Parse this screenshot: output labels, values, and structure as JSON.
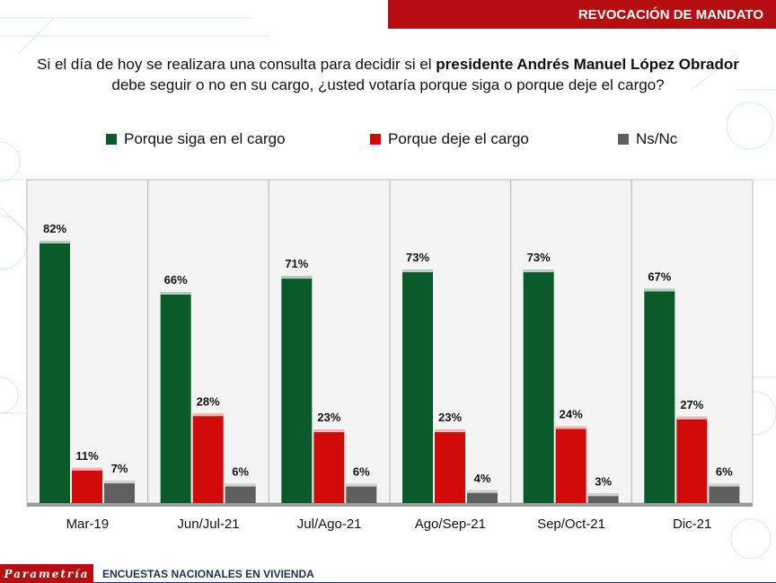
{
  "header": {
    "title": "REVOCACIÓN DE MANDATO"
  },
  "question": {
    "part1": "Si el día de hoy se realizara una consulta para decidir si el ",
    "bold": "presidente Andrés Manuel López Obrador",
    "part2": "debe seguir o no en su cargo, ¿usted votaría porque siga o porque deje el cargo?"
  },
  "footer": {
    "logo": "Parametría",
    "text": "ENCUESTAS NACIONALES EN VIVIENDA"
  },
  "colors": {
    "accent": "#b50d12",
    "green": "#0b5a2b",
    "red": "#d10a0a",
    "gray": "#5f5f5f"
  },
  "chart_data": {
    "type": "bar",
    "categories": [
      "Mar-19",
      "Jun/Jul-21",
      "Jul/Ago-21",
      "Ago/Sep-21",
      "Sep/Oct-21",
      "Dic-21"
    ],
    "series": [
      {
        "name": "Porque siga en el cargo",
        "color": "#0b5a2b",
        "values": [
          82,
          66,
          71,
          73,
          73,
          67
        ]
      },
      {
        "name": "Porque deje el cargo",
        "color": "#d10a0a",
        "values": [
          11,
          28,
          23,
          23,
          24,
          27
        ]
      },
      {
        "name": "Ns/Nc",
        "color": "#5f5f5f",
        "values": [
          7,
          6,
          6,
          4,
          3,
          6
        ]
      }
    ],
    "value_suffix": "%",
    "ylim": [
      0,
      100
    ],
    "legend": "top",
    "grid": false
  }
}
